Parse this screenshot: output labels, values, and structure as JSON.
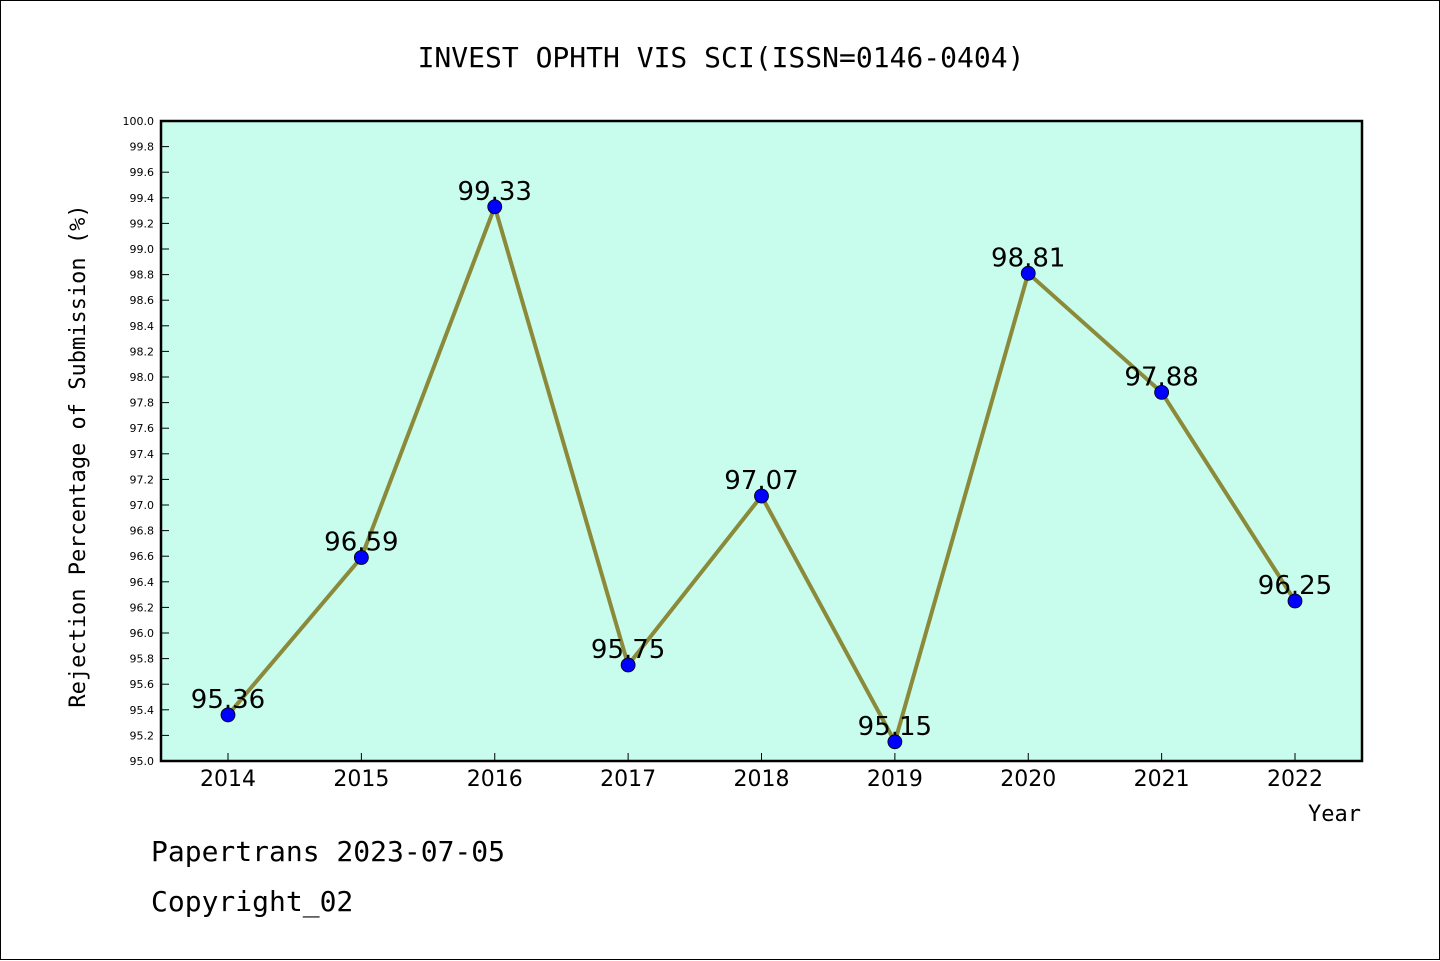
{
  "chart_data": {
    "type": "line",
    "title": "INVEST OPHTH VIS SCI(ISSN=0146-0404)",
    "xlabel": "Year",
    "ylabel": "Rejection Percentage of Submission (%)",
    "categories": [
      "2014",
      "2015",
      "2016",
      "2017",
      "2018",
      "2019",
      "2020",
      "2021",
      "2022"
    ],
    "values": [
      95.36,
      96.59,
      99.33,
      95.75,
      97.07,
      95.15,
      98.81,
      97.88,
      96.25
    ],
    "data_labels": [
      "95.36",
      "96.59",
      "99.33",
      "95.75",
      "97.07",
      "95.15",
      "98.81",
      "97.88",
      "96.25"
    ],
    "ylim": [
      95.0,
      100.0
    ],
    "ytick_step": 0.2,
    "grid": false,
    "colors": {
      "plot_background": "#c8fcec",
      "line": "#8b8a3a",
      "marker": "#0000ff"
    }
  },
  "footer": {
    "line1": "Papertrans 2023-07-05",
    "line2": "Copyright_02"
  }
}
